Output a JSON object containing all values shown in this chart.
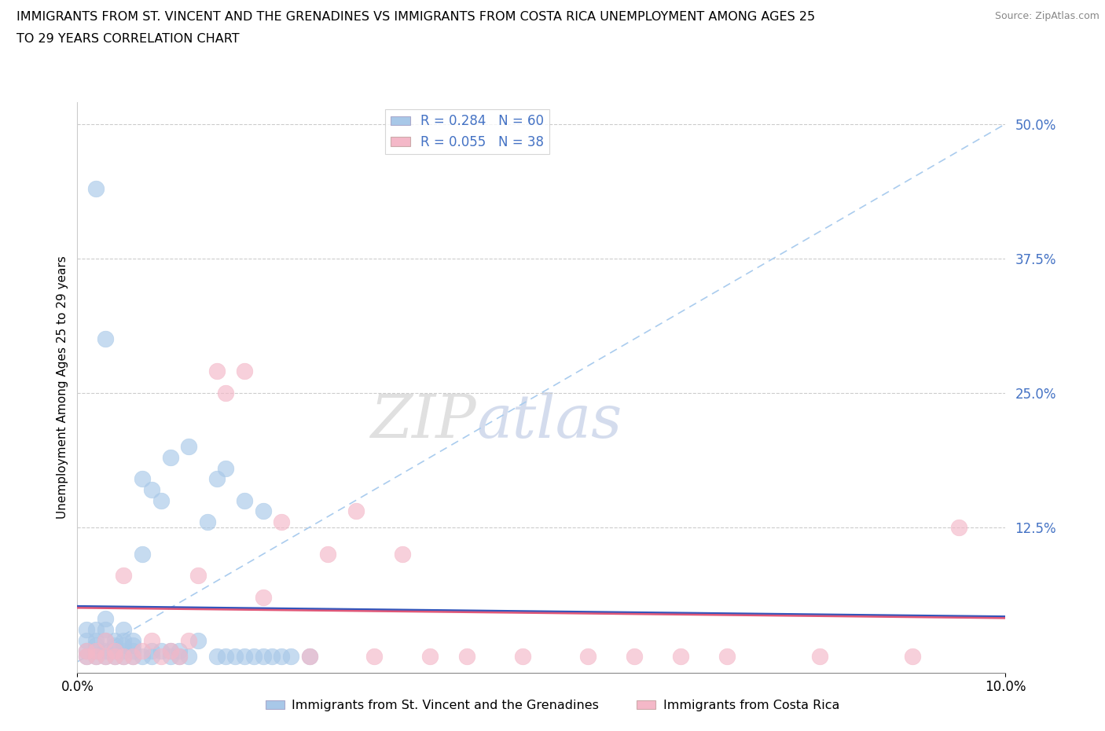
{
  "title_line1": "IMMIGRANTS FROM ST. VINCENT AND THE GRENADINES VS IMMIGRANTS FROM COSTA RICA UNEMPLOYMENT AMONG AGES 25",
  "title_line2": "TO 29 YEARS CORRELATION CHART",
  "source": "Source: ZipAtlas.com",
  "ylabel": "Unemployment Among Ages 25 to 29 years",
  "ytick_vals": [
    0.0,
    0.125,
    0.25,
    0.375,
    0.5
  ],
  "ytick_labels": [
    "",
    "12.5%",
    "25.0%",
    "37.5%",
    "50.0%"
  ],
  "xlim": [
    0.0,
    0.1
  ],
  "ylim": [
    -0.01,
    0.52
  ],
  "r_vincent": 0.284,
  "n_vincent": 60,
  "r_costa": 0.055,
  "n_costa": 38,
  "color_vincent": "#a8c8e8",
  "color_costa": "#f4b8c8",
  "trendline_color_vincent": "#3355bb",
  "trendline_color_costa": "#e05878",
  "diagonal_color": "#aaccee",
  "watermark_zip": "ZIP",
  "watermark_atlas": "atlas",
  "legend_label_vincent": "Immigrants from St. Vincent and the Grenadines",
  "legend_label_costa": "Immigrants from Costa Rica",
  "vincent_x": [
    0.001,
    0.001,
    0.001,
    0.001,
    0.002,
    0.002,
    0.002,
    0.002,
    0.002,
    0.003,
    0.003,
    0.003,
    0.003,
    0.003,
    0.004,
    0.004,
    0.004,
    0.004,
    0.005,
    0.005,
    0.005,
    0.005,
    0.005,
    0.006,
    0.006,
    0.006,
    0.006,
    0.007,
    0.007,
    0.007,
    0.008,
    0.008,
    0.008,
    0.009,
    0.009,
    0.01,
    0.01,
    0.01,
    0.011,
    0.011,
    0.012,
    0.012,
    0.013,
    0.014,
    0.015,
    0.015,
    0.016,
    0.016,
    0.017,
    0.018,
    0.018,
    0.019,
    0.02,
    0.02,
    0.021,
    0.022,
    0.023,
    0.025,
    0.002,
    0.003
  ],
  "vincent_y": [
    0.005,
    0.01,
    0.02,
    0.03,
    0.005,
    0.01,
    0.015,
    0.02,
    0.03,
    0.005,
    0.01,
    0.02,
    0.03,
    0.04,
    0.005,
    0.01,
    0.015,
    0.02,
    0.005,
    0.01,
    0.015,
    0.02,
    0.03,
    0.005,
    0.01,
    0.015,
    0.02,
    0.005,
    0.1,
    0.17,
    0.005,
    0.01,
    0.16,
    0.01,
    0.15,
    0.005,
    0.01,
    0.19,
    0.005,
    0.01,
    0.005,
    0.2,
    0.02,
    0.13,
    0.005,
    0.17,
    0.005,
    0.18,
    0.005,
    0.005,
    0.15,
    0.005,
    0.005,
    0.14,
    0.005,
    0.005,
    0.005,
    0.005,
    0.44,
    0.3
  ],
  "costa_x": [
    0.001,
    0.001,
    0.002,
    0.002,
    0.003,
    0.003,
    0.004,
    0.004,
    0.005,
    0.005,
    0.006,
    0.007,
    0.008,
    0.009,
    0.01,
    0.011,
    0.012,
    0.013,
    0.015,
    0.016,
    0.018,
    0.02,
    0.022,
    0.025,
    0.027,
    0.03,
    0.032,
    0.035,
    0.038,
    0.042,
    0.048,
    0.055,
    0.06,
    0.065,
    0.07,
    0.08,
    0.09,
    0.095
  ],
  "costa_y": [
    0.005,
    0.01,
    0.005,
    0.01,
    0.005,
    0.02,
    0.005,
    0.01,
    0.005,
    0.08,
    0.005,
    0.01,
    0.02,
    0.005,
    0.01,
    0.005,
    0.02,
    0.08,
    0.27,
    0.25,
    0.27,
    0.06,
    0.13,
    0.005,
    0.1,
    0.14,
    0.005,
    0.1,
    0.005,
    0.005,
    0.005,
    0.005,
    0.005,
    0.005,
    0.005,
    0.005,
    0.005,
    0.125
  ]
}
